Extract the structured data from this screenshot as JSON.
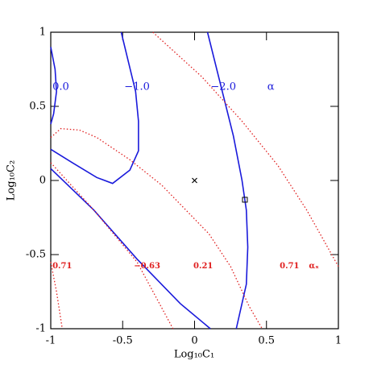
{
  "chart_data": {
    "type": "contour",
    "xlabel": "Log₁₀C₁",
    "ylabel": "Log₁₀C₂",
    "xlim": [
      -1,
      1
    ],
    "ylim": [
      -1,
      1
    ],
    "xticks": [
      -1,
      -0.5,
      0,
      0.5,
      1
    ],
    "yticks": [
      -1,
      -0.5,
      0,
      0.5,
      1
    ],
    "series": [
      {
        "color": "#1a1adb",
        "style": "solid",
        "x": [
          -1,
          -0.97,
          -0.96,
          -0.98,
          -1
        ],
        "y": [
          0.9,
          0.75,
          0.6,
          0.45,
          0.38
        ]
      },
      {
        "color": "#1a1adb",
        "style": "solid",
        "x": [
          -0.51,
          -0.46,
          -0.41,
          -0.39,
          -0.39,
          -0.45,
          -0.57,
          -0.68,
          -0.85,
          -1
        ],
        "y": [
          1,
          0.8,
          0.6,
          0.4,
          0.2,
          0.07,
          -0.02,
          0.02,
          0.12,
          0.21
        ]
      },
      {
        "color": "#1a1adb",
        "style": "solid",
        "x": [
          -1,
          -0.7,
          -0.4,
          -0.1,
          0.11
        ],
        "y": [
          0.08,
          -0.2,
          -0.53,
          -0.83,
          -1
        ]
      },
      {
        "color": "#1a1adb",
        "style": "solid",
        "x": [
          0.09,
          0.18,
          0.27,
          0.33,
          0.36,
          0.37,
          0.36,
          0.29
        ],
        "y": [
          1,
          0.65,
          0.3,
          0,
          -0.2,
          -0.45,
          -0.7,
          -1
        ]
      },
      {
        "color": "#e02020",
        "style": "dotted",
        "x": [
          -0.29,
          0.05,
          0.33,
          0.58,
          0.78,
          1
        ],
        "y": [
          1,
          0.7,
          0.4,
          0.1,
          -0.2,
          -0.58
        ]
      },
      {
        "color": "#e02020",
        "style": "dotted",
        "x": [
          -1,
          -0.93,
          -0.8,
          -0.68,
          -0.45,
          -0.23,
          0.1,
          0.25,
          0.38,
          0.47
        ],
        "y": [
          0.29,
          0.35,
          0.34,
          0.29,
          0.14,
          -0.03,
          -0.36,
          -0.58,
          -0.85,
          -1
        ]
      },
      {
        "color": "#e02020",
        "style": "dotted",
        "x": [
          -1,
          -0.7,
          -0.4,
          -0.15
        ],
        "y": [
          0.12,
          -0.2,
          -0.55,
          -1
        ]
      },
      {
        "color": "#e02020",
        "style": "dotted",
        "x": [
          -1,
          -0.96,
          -0.92
        ],
        "y": [
          -0.55,
          -0.75,
          -1
        ]
      }
    ],
    "markers": [
      {
        "symbol": "cross",
        "x": 0,
        "y": 0
      },
      {
        "symbol": "square",
        "x": 0.35,
        "y": -0.13
      }
    ],
    "annotations": [
      {
        "text": "0.0",
        "x": -0.93,
        "y": 0.63,
        "color": "#1a1adb"
      },
      {
        "text": "−1.0",
        "x": -0.4,
        "y": 0.63,
        "color": "#1a1adb"
      },
      {
        "text": "−2.0",
        "x": 0.2,
        "y": 0.63,
        "color": "#1a1adb"
      },
      {
        "text": "α",
        "x": 0.53,
        "y": 0.63,
        "color": "#1a1adb"
      },
      {
        "text": "0.71",
        "x": -0.92,
        "y": -0.58,
        "color": "#e02020"
      },
      {
        "text": "−0.63",
        "x": -0.33,
        "y": -0.58,
        "color": "#e02020"
      },
      {
        "text": "0.21",
        "x": 0.06,
        "y": -0.58,
        "color": "#e02020"
      },
      {
        "text": "0.71",
        "x": 0.66,
        "y": -0.58,
        "color": "#e02020"
      },
      {
        "text": "αₓ",
        "x": 0.83,
        "y": -0.58,
        "color": "#e02020"
      }
    ]
  }
}
